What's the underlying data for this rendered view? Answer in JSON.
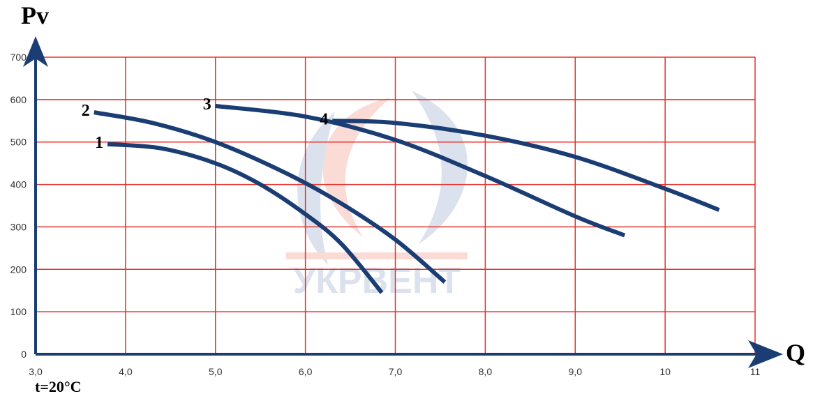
{
  "colors": {
    "grid": "#e8302a",
    "axis": "#1a3d73",
    "curve": "#1a3d73"
  },
  "note": "t=20°C",
  "chart_data": {
    "type": "line",
    "ylabel": "Pv",
    "xlabel": "Q",
    "xlim": [
      3.0,
      11.0
    ],
    "ylim": [
      0,
      700
    ],
    "x_ticks": [
      3.0,
      4.0,
      5.0,
      6.0,
      7.0,
      8.0,
      9.0,
      10.0,
      11.0
    ],
    "x_tick_labels": [
      "3,0",
      "4,0",
      "5,0",
      "6,0",
      "7,0",
      "8,0",
      "9,0",
      "10",
      "11"
    ],
    "y_ticks": [
      0,
      100,
      200,
      300,
      400,
      500,
      600,
      700
    ],
    "y_tick_labels": [
      "0",
      "100",
      "200",
      "300",
      "400",
      "500",
      "600",
      "700"
    ],
    "grid": true,
    "watermark": "УКРВЕНТ",
    "series": [
      {
        "name": "1",
        "x": [
          3.8,
          4.4,
          5.0,
          5.5,
          6.0,
          6.4,
          6.85
        ],
        "y": [
          495,
          485,
          450,
          400,
          330,
          260,
          145
        ]
      },
      {
        "name": "2",
        "x": [
          3.65,
          4.3,
          5.0,
          5.8,
          6.4,
          7.0,
          7.55
        ],
        "y": [
          570,
          545,
          500,
          425,
          355,
          270,
          170
        ]
      },
      {
        "name": "3",
        "x": [
          5.0,
          6.0,
          7.0,
          8.0,
          9.0,
          9.55
        ],
        "y": [
          585,
          560,
          505,
          420,
          325,
          280
        ]
      },
      {
        "name": "4",
        "x": [
          6.3,
          7.0,
          8.0,
          9.0,
          10.0,
          10.6
        ],
        "y": [
          550,
          545,
          515,
          465,
          390,
          340
        ]
      }
    ]
  }
}
